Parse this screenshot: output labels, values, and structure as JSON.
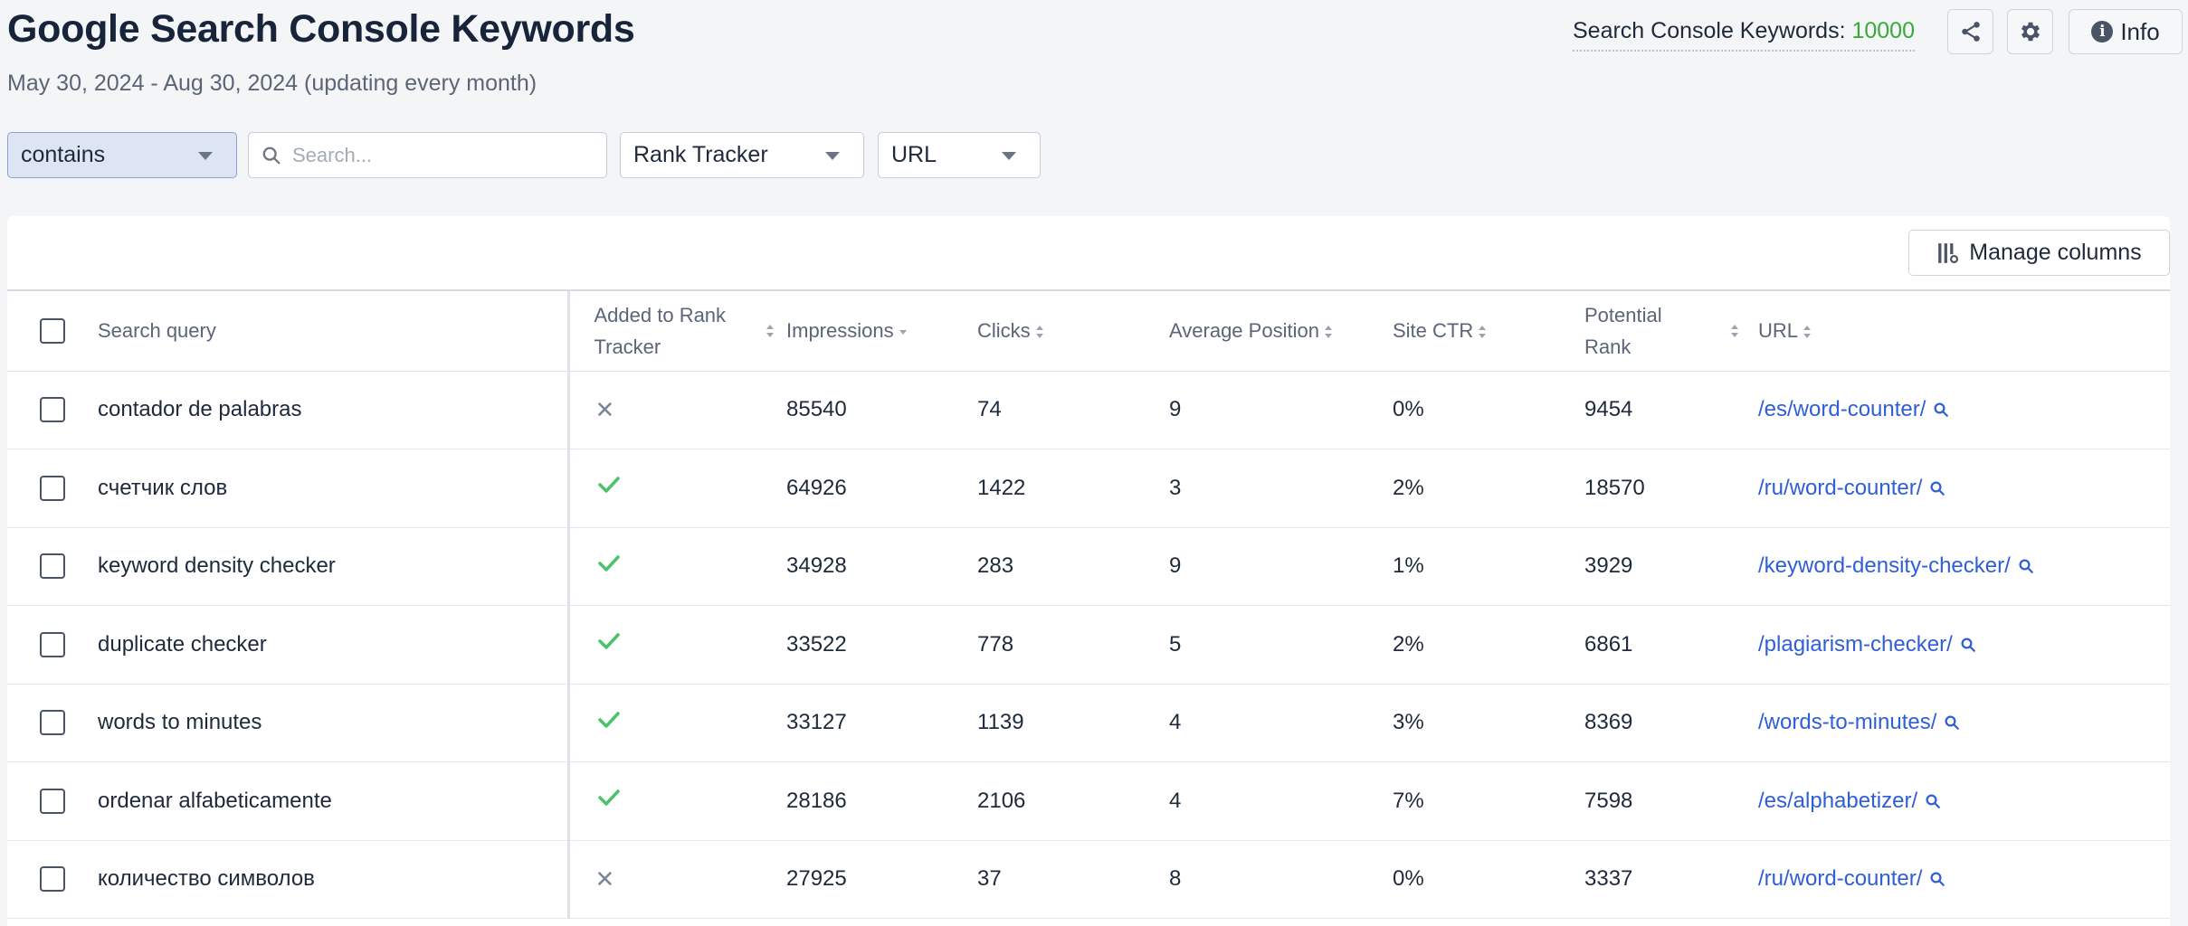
{
  "header": {
    "title": "Google Search Console Keywords",
    "subtitle": "May 30, 2024 - Aug 30, 2024 (updating every month)",
    "kw_label": "Search Console Keywords: ",
    "kw_value": "10000",
    "info_label": "Info"
  },
  "filters": {
    "match_type": "contains",
    "search_placeholder": "Search...",
    "rank_tracker": "Rank Tracker",
    "url": "URL"
  },
  "toolbar": {
    "manage_columns": "Manage columns"
  },
  "columns": {
    "search_query": "Search query",
    "added_line1": "Added to Rank",
    "added_line2": "Tracker",
    "impressions": "Impressions",
    "clicks": "Clicks",
    "avg_position": "Average Position",
    "site_ctr": "Site CTR",
    "potential_line1": "Potential",
    "potential_line2": "Rank",
    "url": "URL"
  },
  "rows": [
    {
      "query": "contador de palabras",
      "added": false,
      "impressions": "85540",
      "clicks": "74",
      "position": "9",
      "ctr": "0%",
      "potential": "9454",
      "url": "/es/word-counter/"
    },
    {
      "query": "счетчик слов",
      "added": true,
      "impressions": "64926",
      "clicks": "1422",
      "position": "3",
      "ctr": "2%",
      "potential": "18570",
      "url": "/ru/word-counter/"
    },
    {
      "query": "keyword density checker",
      "added": true,
      "impressions": "34928",
      "clicks": "283",
      "position": "9",
      "ctr": "1%",
      "potential": "3929",
      "url": "/keyword-density-checker/"
    },
    {
      "query": "duplicate checker",
      "added": true,
      "impressions": "33522",
      "clicks": "778",
      "position": "5",
      "ctr": "2%",
      "potential": "6861",
      "url": "/plagiarism-checker/"
    },
    {
      "query": "words to minutes",
      "added": true,
      "impressions": "33127",
      "clicks": "1139",
      "position": "4",
      "ctr": "3%",
      "potential": "8369",
      "url": "/words-to-minutes/"
    },
    {
      "query": "ordenar alfabeticamente",
      "added": true,
      "impressions": "28186",
      "clicks": "2106",
      "position": "4",
      "ctr": "7%",
      "potential": "7598",
      "url": "/es/alphabetizer/"
    },
    {
      "query": "количество символов",
      "added": false,
      "impressions": "27925",
      "clicks": "37",
      "position": "8",
      "ctr": "0%",
      "potential": "3337",
      "url": "/ru/word-counter/"
    }
  ],
  "colors": {
    "accent_link": "#2f5ed9",
    "check_green": "#4cc26a",
    "count_green": "#3aa83a"
  }
}
